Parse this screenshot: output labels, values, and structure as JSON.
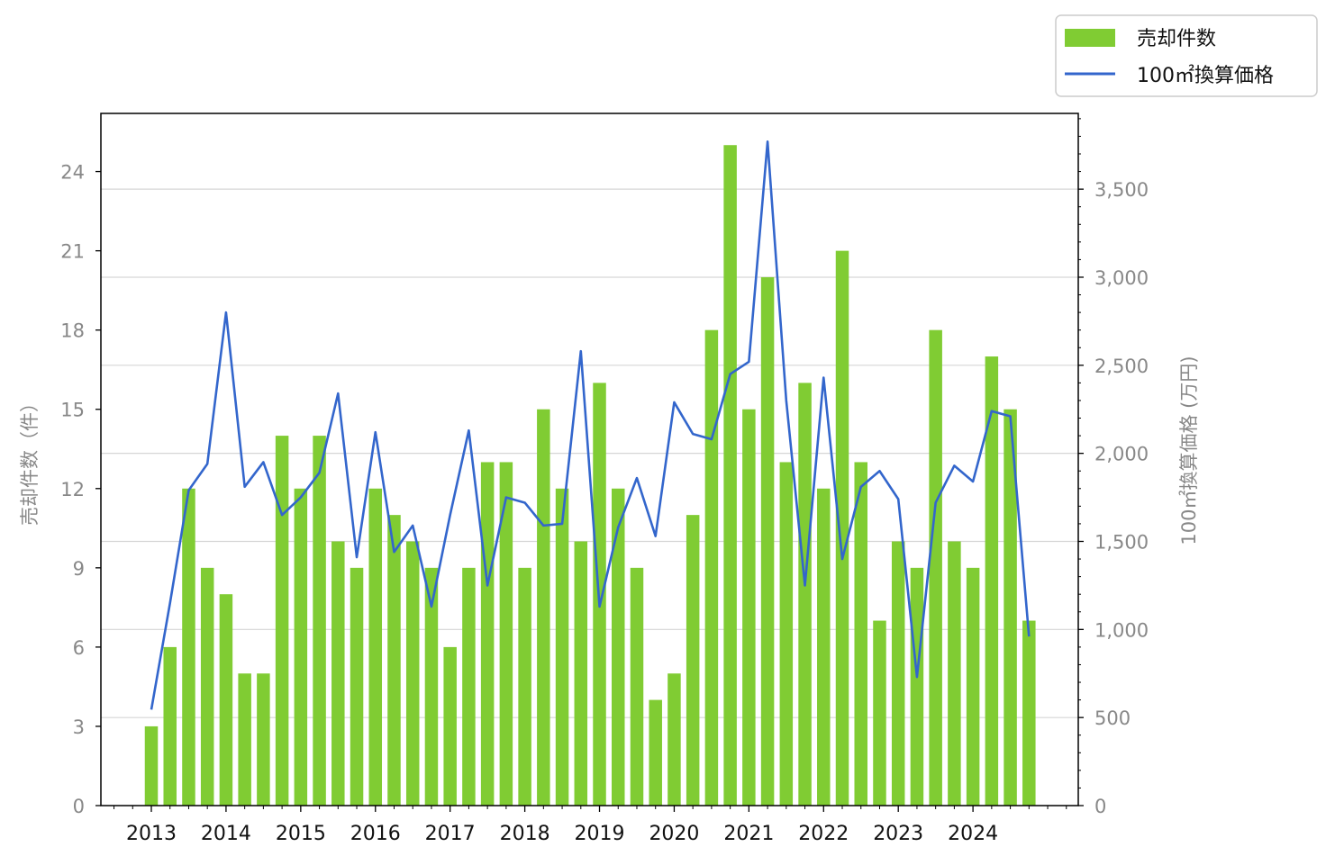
{
  "chart_data": {
    "type": "bar",
    "x_tick_labels": [
      "2013",
      "2014",
      "2015",
      "2016",
      "2017",
      "2018",
      "2019",
      "2020",
      "2021",
      "2022",
      "2023",
      "2024"
    ],
    "x_start_year": 2013,
    "series": [
      {
        "name": "売却件数",
        "type": "bar",
        "axis": "left",
        "color": "#80cc33",
        "values": [
          3,
          6,
          12,
          9,
          8,
          5,
          5,
          14,
          12,
          14,
          10,
          9,
          12,
          11,
          10,
          9,
          6,
          9,
          13,
          13,
          9,
          15,
          12,
          10,
          16,
          12,
          9,
          4,
          5,
          11,
          18,
          25,
          15,
          20,
          13,
          16,
          12,
          21,
          13,
          7,
          10,
          9,
          18,
          10,
          9,
          17,
          15,
          7
        ]
      },
      {
        "name": "100㎡換算価格",
        "type": "line",
        "axis": "right",
        "color": "#3366cc",
        "values": [
          545,
          1150,
          1790,
          1940,
          2800,
          1810,
          1950,
          1650,
          1750,
          1890,
          2340,
          1410,
          2120,
          1440,
          1590,
          1130,
          1650,
          2130,
          1250,
          1750,
          1720,
          1590,
          1600,
          2580,
          1130,
          1580,
          1860,
          1530,
          2290,
          2110,
          2080,
          2450,
          2520,
          3770,
          2300,
          1250,
          2430,
          1400,
          1810,
          1900,
          1740,
          730,
          1720,
          1930,
          1840,
          2240,
          2210,
          960
        ]
      }
    ],
    "y_left": {
      "label": "売却件数（件）",
      "ylim": [
        0,
        26.2
      ],
      "ticks": [
        0,
        3,
        6,
        9,
        12,
        15,
        18,
        21,
        24
      ],
      "tick_labels": [
        "0",
        "3",
        "6",
        "9",
        "12",
        "15",
        "18",
        "21",
        "24"
      ]
    },
    "y_right": {
      "label": "100㎡換算価格 (万円)",
      "ylim": [
        0,
        3930
      ],
      "ticks": [
        0,
        500,
        1000,
        1500,
        2000,
        2500,
        3000,
        3500
      ],
      "tick_labels": [
        "0",
        "500",
        "1,000",
        "1,500",
        "2,000",
        "2,500",
        "3,000",
        "3,500"
      ]
    },
    "grid": "horizontal (right axis)",
    "legend": {
      "placement": "top-right, outside plot",
      "entries": [
        "売却件数",
        "100㎡換算価格"
      ]
    }
  }
}
